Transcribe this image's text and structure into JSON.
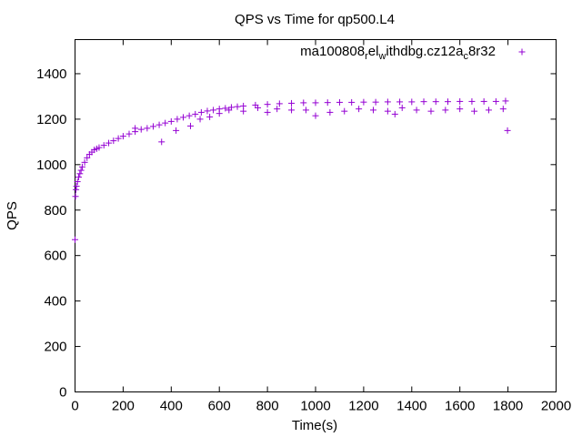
{
  "chart_data": {
    "type": "scatter",
    "title": "QPS vs Time for qp500.L4",
    "xlabel": "Time(s)",
    "ylabel": "QPS",
    "xlim": [
      0,
      2000
    ],
    "ylim": [
      0,
      1550
    ],
    "x_ticks": [
      "0",
      "200",
      "400",
      "600",
      "800",
      "1000",
      "1200",
      "1400",
      "1600",
      "1800",
      "2000"
    ],
    "y_ticks": [
      "0",
      "200",
      "400",
      "600",
      "800",
      "1000",
      "1200",
      "1400"
    ],
    "grid": false,
    "legend_position": "top-right",
    "legend": {
      "base": "ma100808",
      "sub1": "r",
      "mid1": "el",
      "sub2": "w",
      "mid2": "ithdbg.cz12a",
      "sub3": "c",
      "tail": "8r32"
    },
    "marker": "+",
    "color": "#9400d3",
    "series": [
      {
        "x": [
          0,
          2,
          4,
          6,
          10,
          15,
          20,
          25,
          30,
          40,
          50,
          60,
          70,
          80,
          90,
          100,
          120,
          140,
          160,
          180,
          200,
          225,
          250,
          275,
          300,
          325,
          350,
          375,
          400,
          425,
          450,
          475,
          500,
          525,
          550,
          575,
          600,
          625,
          650,
          675,
          700,
          750,
          800,
          850,
          900,
          950,
          1000,
          1050,
          1100,
          1150,
          1200,
          1250,
          1300,
          1350,
          1400,
          1450,
          1500,
          1550,
          1600,
          1650,
          1700,
          1750,
          1790,
          1798,
          250,
          360,
          420,
          480,
          520,
          560,
          600,
          640,
          700,
          760,
          800,
          840,
          900,
          960,
          1000,
          1060,
          1120,
          1180,
          1240,
          1300,
          1330,
          1360,
          1420,
          1480,
          1540,
          1600,
          1660,
          1720,
          1780
        ],
        "y": [
          670,
          860,
          890,
          905,
          925,
          945,
          960,
          975,
          990,
          1010,
          1030,
          1045,
          1055,
          1065,
          1070,
          1075,
          1085,
          1095,
          1105,
          1115,
          1125,
          1135,
          1145,
          1155,
          1160,
          1168,
          1175,
          1183,
          1190,
          1200,
          1208,
          1215,
          1222,
          1230,
          1236,
          1240,
          1245,
          1248,
          1252,
          1255,
          1258,
          1262,
          1265,
          1268,
          1270,
          1272,
          1272,
          1273,
          1274,
          1274,
          1275,
          1275,
          1276,
          1276,
          1276,
          1277,
          1277,
          1277,
          1278,
          1278,
          1278,
          1278,
          1280,
          1150,
          1160,
          1100,
          1150,
          1170,
          1200,
          1210,
          1225,
          1240,
          1235,
          1250,
          1230,
          1245,
          1240,
          1240,
          1215,
          1230,
          1235,
          1245,
          1240,
          1235,
          1222,
          1250,
          1240,
          1235,
          1240,
          1245,
          1235,
          1240,
          1245
        ]
      }
    ]
  }
}
